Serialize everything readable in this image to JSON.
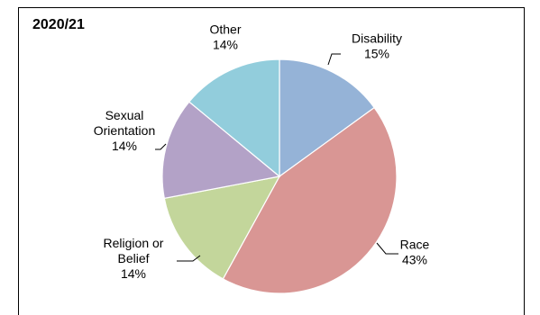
{
  "chart_data": {
    "type": "pie",
    "title": "2020/21",
    "slices": [
      {
        "name": "Disability",
        "value": 15,
        "label": "15%",
        "color": "#95b3d7"
      },
      {
        "name": "Race",
        "value": 43,
        "label": "43%",
        "color": "#d99694"
      },
      {
        "name": "Religion or Belief",
        "label_lines": [
          "Religion or",
          "Belief"
        ],
        "value": 14,
        "label": "14%",
        "color": "#c3d69b"
      },
      {
        "name": "Sexual Orientation",
        "label_lines": [
          "Sexual",
          "Orientation"
        ],
        "value": 14,
        "label": "14%",
        "color": "#b3a2c7"
      },
      {
        "name": "Other",
        "value": 14,
        "label": "14%",
        "color": "#92cddc"
      }
    ],
    "legend": "none"
  }
}
